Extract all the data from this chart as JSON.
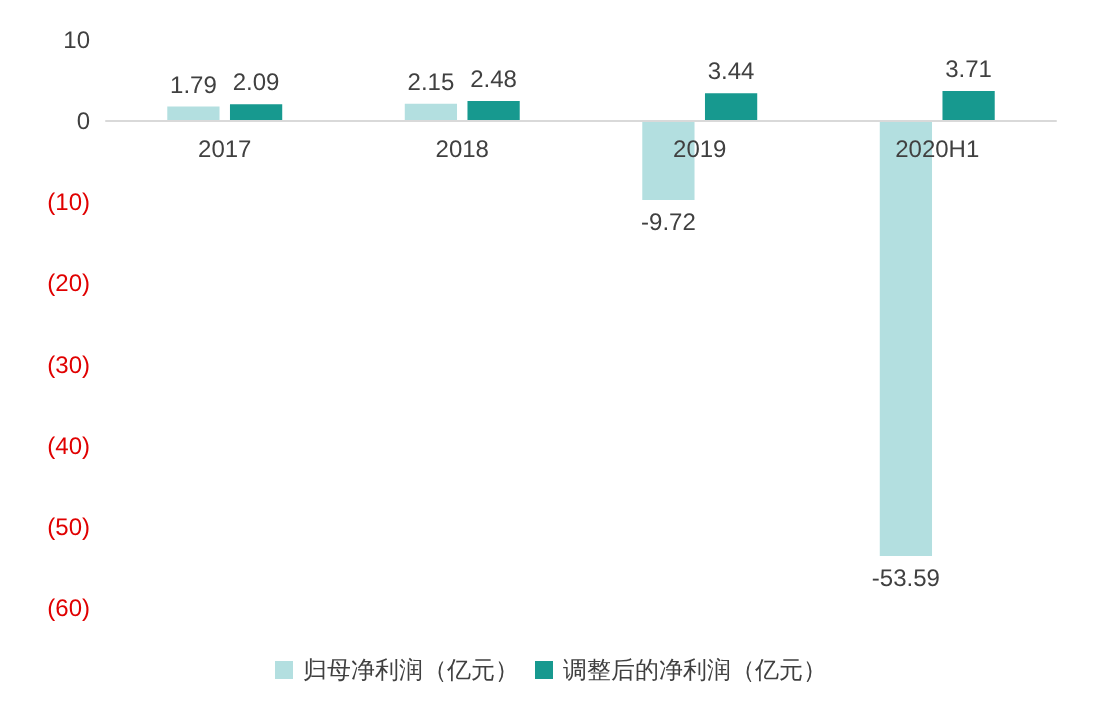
{
  "chart_data": {
    "type": "bar",
    "categories": [
      "2017",
      "2018",
      "2019",
      "2020H1"
    ],
    "series": [
      {
        "name": "归母净利润（亿元）",
        "color": "#b3dfe0",
        "values": [
          1.79,
          2.15,
          -9.72,
          -53.59
        ]
      },
      {
        "name": "调整后的净利润（亿元）",
        "color": "#17998f",
        "values": [
          2.09,
          2.48,
          3.44,
          3.71
        ]
      }
    ],
    "ylim": [
      -60,
      10
    ],
    "yticks": [
      10,
      0,
      {
        "value": -10,
        "label": "(10)"
      },
      {
        "value": -20,
        "label": "(20)"
      },
      {
        "value": -30,
        "label": "(30)"
      },
      {
        "value": -40,
        "label": "(40)"
      },
      {
        "value": -50,
        "label": "(50)"
      },
      {
        "value": -60,
        "label": "(60)"
      }
    ],
    "data_labels": true,
    "grid": false,
    "legend": "bottom"
  }
}
